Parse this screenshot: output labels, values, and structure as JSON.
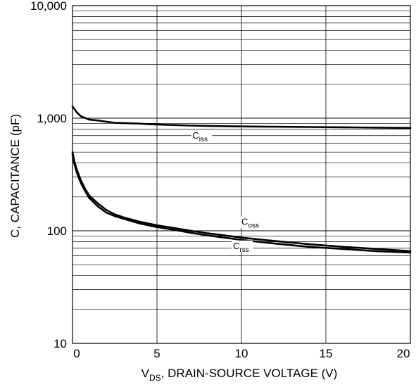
{
  "chart_data": {
    "type": "line",
    "title": "",
    "xlabel": {
      "main": "V",
      "subscript": "DS",
      "rest": ", DRAIN-SOURCE VOLTAGE (V)"
    },
    "ylabel": "C, CAPACITANCE (pF)",
    "x_scale": "linear",
    "y_scale": "log",
    "xlim": [
      0,
      20
    ],
    "ylim": [
      10,
      10000
    ],
    "x_ticks": [
      0,
      5,
      10,
      15,
      20
    ],
    "x_tick_labels": [
      "0",
      "5",
      "10",
      "15",
      "20"
    ],
    "y_ticks": [
      10,
      100,
      1000,
      10000
    ],
    "y_tick_labels": [
      "10",
      "100",
      "1,000",
      "10,000"
    ],
    "grid": true,
    "series": [
      {
        "name": "iss",
        "label": {
          "main": "C",
          "subscript": "iss"
        },
        "x": [
          0,
          0.25,
          0.5,
          1,
          1.5,
          2,
          2.5,
          3,
          3.5,
          4,
          4.5,
          5,
          6,
          7,
          8,
          9,
          10,
          12,
          14,
          16,
          18,
          20
        ],
        "y": [
          1270,
          1130,
          1040,
          970,
          955,
          930,
          910,
          905,
          900,
          895,
          885,
          880,
          870,
          860,
          855,
          850,
          845,
          840,
          835,
          830,
          825,
          820
        ]
      },
      {
        "name": "oss",
        "label": {
          "main": "C",
          "subscript": "oss"
        },
        "x": [
          0,
          0.1,
          0.25,
          0.5,
          0.75,
          1,
          1.5,
          2,
          2.5,
          3,
          4,
          5,
          6,
          7,
          8,
          9,
          10,
          12,
          14,
          16,
          18,
          20
        ],
        "y": [
          500,
          420,
          350,
          280,
          235,
          205,
          175,
          153,
          140,
          132,
          120,
          112,
          106,
          100,
          95,
          91,
          87,
          81,
          76,
          72,
          69,
          66
        ]
      },
      {
        "name": "rss",
        "label": {
          "main": "C",
          "subscript": "rss"
        },
        "x": [
          0,
          0.1,
          0.25,
          0.5,
          0.75,
          1,
          1.5,
          2,
          2.5,
          3,
          4,
          5,
          6,
          7,
          8,
          9,
          10,
          12,
          14,
          16,
          18,
          20
        ],
        "y": [
          480,
          400,
          330,
          265,
          225,
          195,
          165,
          145,
          135,
          128,
          116,
          108,
          102,
          96,
          91,
          87,
          83,
          77,
          72,
          69,
          66,
          64
        ]
      }
    ]
  }
}
